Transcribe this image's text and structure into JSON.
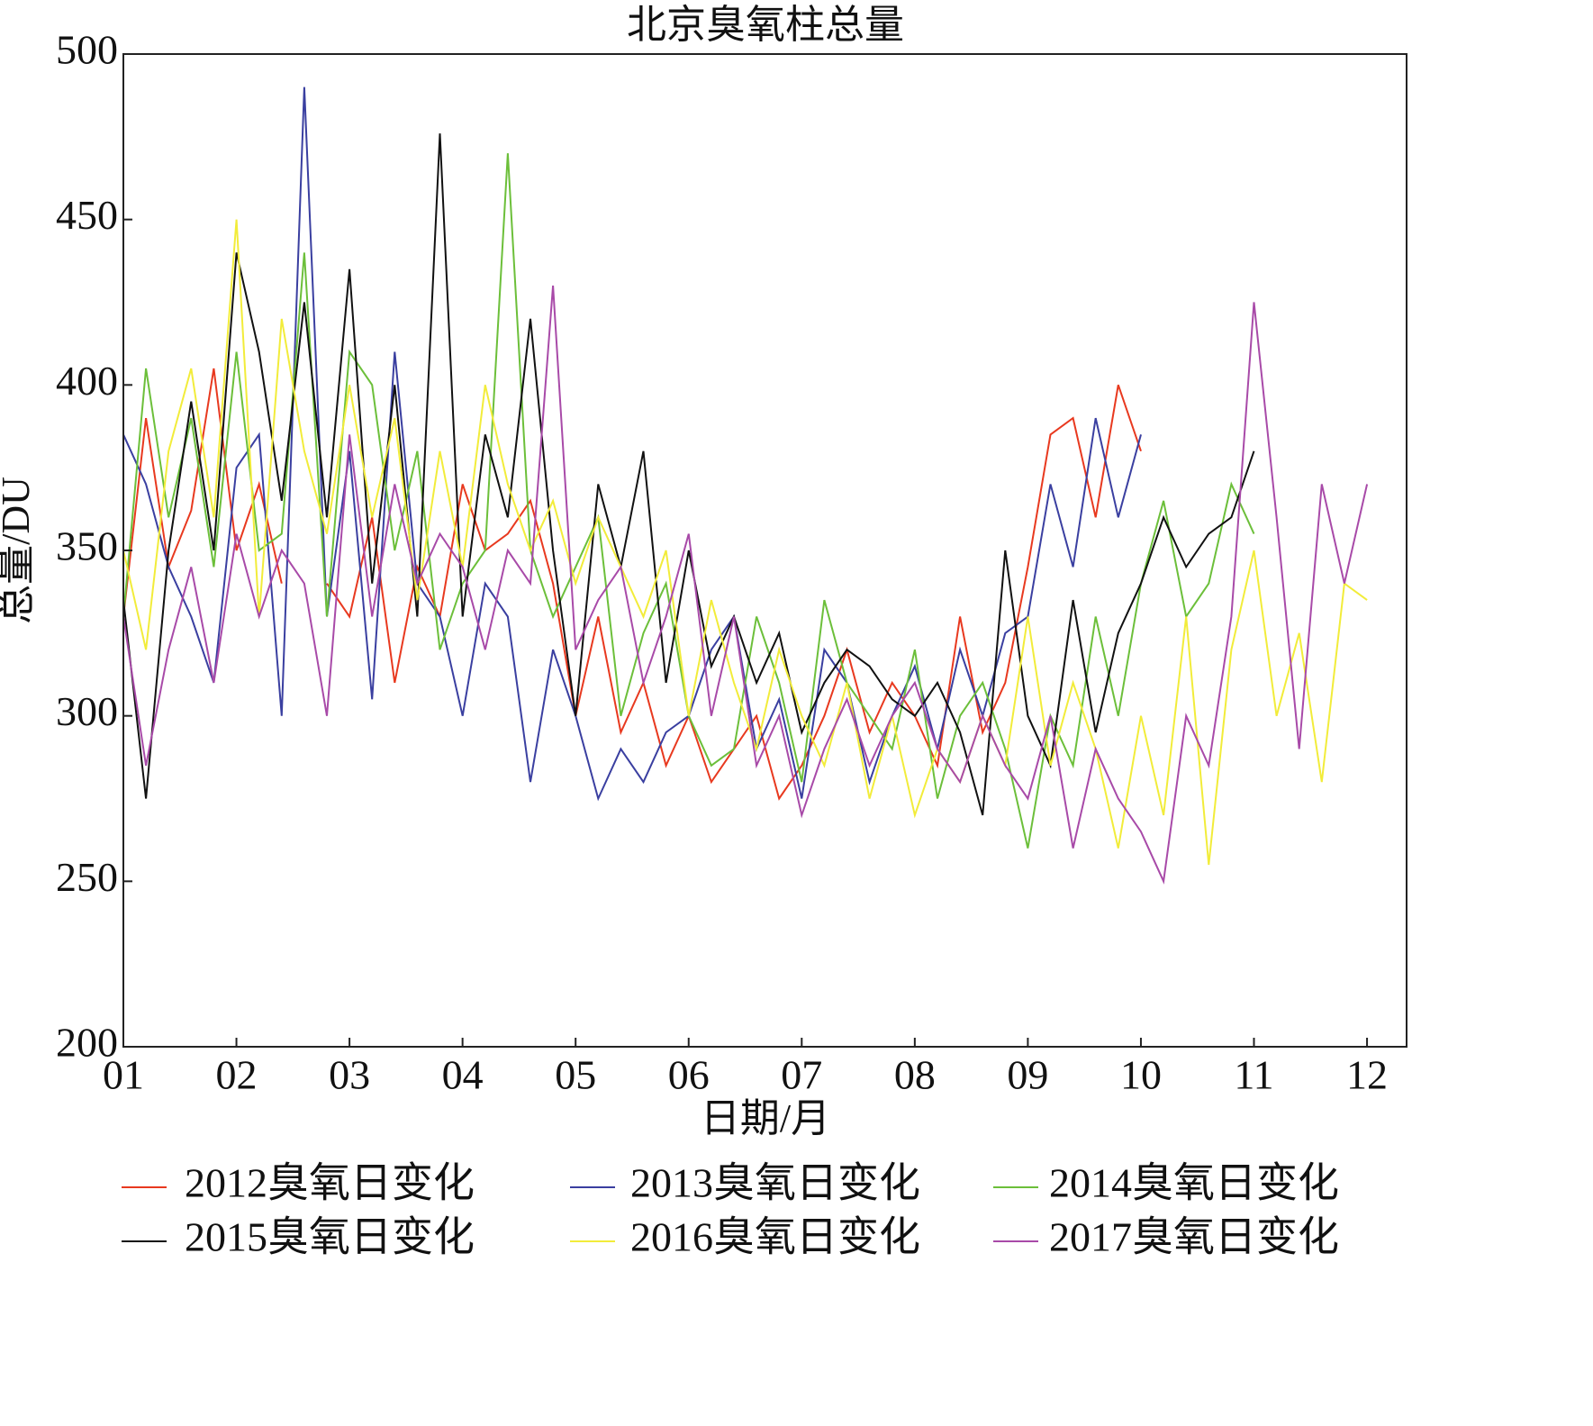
{
  "chart_data": {
    "type": "line",
    "title": "北京臭氧柱总量",
    "xlabel": "日期/月",
    "ylabel": "总量/DU",
    "xlim": [
      1,
      12.35
    ],
    "ylim": [
      200,
      500
    ],
    "xticks": [
      {
        "value": 1,
        "label": "01"
      },
      {
        "value": 2,
        "label": "02"
      },
      {
        "value": 3,
        "label": "03"
      },
      {
        "value": 4,
        "label": "04"
      },
      {
        "value": 5,
        "label": "05"
      },
      {
        "value": 6,
        "label": "06"
      },
      {
        "value": 7,
        "label": "07"
      },
      {
        "value": 8,
        "label": "08"
      },
      {
        "value": 9,
        "label": "09"
      },
      {
        "value": 10,
        "label": "10"
      },
      {
        "value": 11,
        "label": "11"
      },
      {
        "value": 12,
        "label": "12"
      }
    ],
    "yticks": [
      200,
      250,
      300,
      350,
      400,
      450,
      500
    ],
    "grid": false,
    "legend": "bottom",
    "series": [
      {
        "name": "2012臭氧日变化",
        "color": "#e8391f",
        "x": [
          1,
          1.2,
          1.4,
          1.6,
          1.8,
          2,
          2.2,
          2.4,
          2.6,
          2.8,
          3,
          3.2,
          3.4,
          3.6,
          3.8,
          4,
          4.2,
          4.4,
          4.6,
          4.8,
          5,
          5.2,
          5.4,
          5.6,
          5.8,
          6,
          6.2,
          6.4,
          6.6,
          6.8,
          7,
          7.2,
          7.4,
          7.6,
          7.8,
          8,
          8.2,
          8.4,
          8.6,
          8.8,
          9,
          9.2,
          9.4,
          9.6,
          9.8,
          10
        ],
        "values": [
          330,
          390,
          345,
          362,
          405,
          350,
          370,
          340,
          null,
          340,
          330,
          360,
          310,
          345,
          330,
          370,
          350,
          355,
          365,
          340,
          300,
          330,
          295,
          310,
          285,
          300,
          280,
          290,
          300,
          275,
          285,
          300,
          320,
          295,
          310,
          300,
          285,
          330,
          295,
          310,
          345,
          385,
          390,
          360,
          400,
          380
        ]
      },
      {
        "name": "2013臭氧日变化",
        "color": "#3a3fa0",
        "x": [
          1,
          1.2,
          1.4,
          1.6,
          1.8,
          2,
          2.2,
          2.4,
          2.6,
          2.8,
          3,
          3.2,
          3.4,
          3.6,
          3.8,
          4,
          4.2,
          4.4,
          4.6,
          4.8,
          5,
          5.2,
          5.4,
          5.6,
          5.8,
          6,
          6.2,
          6.4,
          6.6,
          6.8,
          7,
          7.2,
          7.4,
          7.6,
          7.8,
          8,
          8.2,
          8.4,
          8.6,
          8.8,
          9,
          9.2,
          9.4,
          9.6,
          9.8,
          10
        ],
        "values": [
          385,
          370,
          345,
          330,
          310,
          375,
          385,
          300,
          490,
          330,
          380,
          305,
          410,
          340,
          330,
          300,
          340,
          330,
          280,
          320,
          300,
          275,
          290,
          280,
          295,
          300,
          320,
          330,
          290,
          305,
          275,
          320,
          310,
          280,
          300,
          315,
          290,
          320,
          300,
          325,
          330,
          370,
          345,
          390,
          360,
          385
        ]
      },
      {
        "name": "2014臭氧日变化",
        "color": "#6cbf3a",
        "x": [
          1,
          1.2,
          1.4,
          1.6,
          1.8,
          2,
          2.2,
          2.4,
          2.6,
          2.8,
          3,
          3.2,
          3.4,
          3.6,
          3.8,
          4,
          4.2,
          4.4,
          4.6,
          4.8,
          5,
          5.2,
          5.4,
          5.6,
          5.8,
          6,
          6.2,
          6.4,
          6.6,
          6.8,
          7,
          7.2,
          7.4,
          7.6,
          7.8,
          8,
          8.2,
          8.4,
          8.6,
          8.8,
          9,
          9.2,
          9.4,
          9.6,
          9.8,
          10,
          10.2,
          10.4,
          10.6,
          10.8,
          11
        ],
        "values": [
          330,
          405,
          360,
          390,
          345,
          410,
          350,
          355,
          440,
          330,
          410,
          400,
          350,
          380,
          320,
          340,
          350,
          470,
          350,
          330,
          345,
          360,
          300,
          325,
          340,
          300,
          285,
          290,
          330,
          310,
          280,
          335,
          310,
          300,
          290,
          320,
          275,
          300,
          310,
          290,
          260,
          300,
          285,
          330,
          300,
          340,
          365,
          330,
          340,
          370,
          355
        ]
      },
      {
        "name": "2015臭氧日变化",
        "color": "#111111",
        "x": [
          1,
          1.2,
          1.4,
          1.6,
          1.8,
          2,
          2.2,
          2.4,
          2.6,
          2.8,
          3,
          3.2,
          3.4,
          3.6,
          3.8,
          4,
          4.2,
          4.4,
          4.6,
          4.8,
          5,
          5.2,
          5.4,
          5.6,
          5.8,
          6,
          6.2,
          6.4,
          6.6,
          6.8,
          7,
          7.2,
          7.4,
          7.6,
          7.8,
          8,
          8.2,
          8.4,
          8.6,
          8.8,
          9,
          9.2,
          9.4,
          9.6,
          9.8,
          10,
          10.2,
          10.4,
          10.6,
          10.8,
          11
        ],
        "values": [
          335,
          275,
          350,
          395,
          350,
          440,
          410,
          365,
          425,
          360,
          435,
          340,
          400,
          330,
          476,
          330,
          385,
          360,
          420,
          350,
          300,
          370,
          345,
          380,
          310,
          350,
          315,
          330,
          310,
          325,
          295,
          310,
          320,
          315,
          305,
          300,
          310,
          295,
          270,
          350,
          300,
          285,
          335,
          295,
          325,
          340,
          360,
          345,
          355,
          360,
          380
        ]
      },
      {
        "name": "2016臭氧日变化",
        "color": "#f2ec3a",
        "x": [
          1,
          1.2,
          1.4,
          1.6,
          1.8,
          2,
          2.2,
          2.4,
          2.6,
          2.8,
          3,
          3.2,
          3.4,
          3.6,
          3.8,
          4,
          4.2,
          4.4,
          4.6,
          4.8,
          5,
          5.2,
          5.4,
          5.6,
          5.8,
          6,
          6.2,
          6.4,
          6.6,
          6.8,
          7,
          7.2,
          7.4,
          7.6,
          7.8,
          8,
          8.2,
          8.4,
          8.6,
          8.8,
          9,
          9.2,
          9.4,
          9.6,
          9.8,
          10,
          10.2,
          10.4,
          10.6,
          10.8,
          11,
          11.2,
          11.4,
          11.6,
          11.8,
          12
        ],
        "values": [
          350,
          320,
          380,
          405,
          360,
          450,
          330,
          420,
          380,
          355,
          400,
          360,
          390,
          335,
          380,
          345,
          400,
          370,
          350,
          365,
          340,
          360,
          345,
          330,
          350,
          300,
          335,
          310,
          290,
          320,
          300,
          285,
          310,
          275,
          300,
          270,
          290,
          280,
          300,
          285,
          330,
          285,
          310,
          290,
          260,
          300,
          270,
          330,
          255,
          320,
          350,
          300,
          325,
          280,
          340,
          335
        ]
      },
      {
        "name": "2017臭氧日变化",
        "color": "#a84aa8",
        "x": [
          1,
          1.2,
          1.4,
          1.6,
          1.8,
          2,
          2.2,
          2.4,
          2.6,
          2.8,
          3,
          3.2,
          3.4,
          3.6,
          3.8,
          4,
          4.2,
          4.4,
          4.6,
          4.8,
          5,
          5.2,
          5.4,
          5.6,
          5.8,
          6,
          6.2,
          6.4,
          6.6,
          6.8,
          7,
          7.2,
          7.4,
          7.6,
          7.8,
          8,
          8.2,
          8.4,
          8.6,
          8.8,
          9,
          9.2,
          9.4,
          9.6,
          9.8,
          10,
          10.2,
          10.4,
          10.6,
          10.8,
          11,
          11.2,
          11.4,
          11.6,
          11.8,
          12
        ],
        "values": [
          330,
          285,
          320,
          345,
          310,
          355,
          330,
          350,
          340,
          300,
          385,
          330,
          370,
          340,
          355,
          345,
          320,
          350,
          340,
          430,
          320,
          335,
          345,
          310,
          330,
          355,
          300,
          330,
          285,
          300,
          270,
          290,
          305,
          285,
          300,
          310,
          290,
          280,
          300,
          285,
          275,
          300,
          260,
          290,
          275,
          265,
          250,
          300,
          285,
          330,
          425,
          360,
          290,
          370,
          340,
          370
        ]
      }
    ]
  }
}
